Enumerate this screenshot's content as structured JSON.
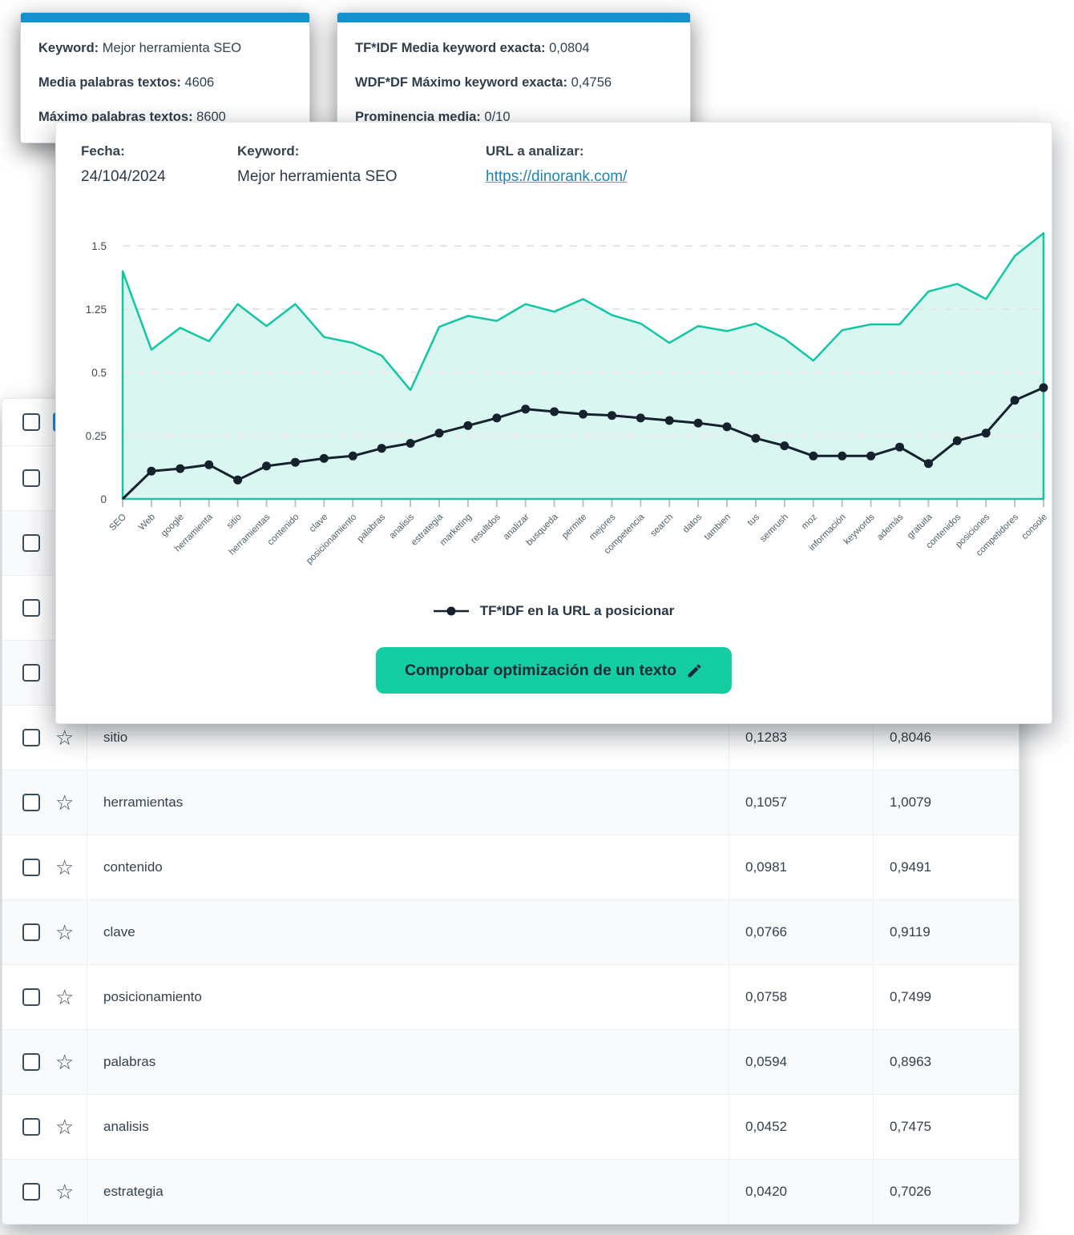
{
  "tooltips": [
    {
      "lines": [
        {
          "label": "Keyword:",
          "value": "Mejor herramienta SEO"
        },
        {
          "label": "Media palabras textos:",
          "value": "4606"
        },
        {
          "label": "Máximo palabras textos:",
          "value": "8600"
        }
      ]
    },
    {
      "lines": [
        {
          "label": "TF*IDF Media keyword exacta:",
          "value": "0,0804"
        },
        {
          "label": "WDF*DF Máximo keyword exacta:",
          "value": "0,4756"
        },
        {
          "label": "Prominencia media:",
          "value": "0/10"
        }
      ]
    }
  ],
  "panel": {
    "fecha_label": "Fecha:",
    "fecha_value": "24/104/2024",
    "keyword_label": "Keyword:",
    "keyword_value": "Mejor herramienta SEO",
    "url_label": "URL a analizar:",
    "url_value": "https://dinorank.com/",
    "legend_label": "TF*IDF en la URL a posicionar",
    "button_label": "Comprobar optimización de un texto",
    "button_icon": "pencil-icon"
  },
  "chart_data": {
    "type": "area+line",
    "title": "",
    "categories": [
      "SEO",
      "Web",
      "google",
      "herramienta",
      "sitio",
      "herramientas",
      "contenido",
      "clave",
      "posicionamiento",
      "palabras",
      "analisis",
      "estrategia",
      "marketing",
      "resultdos",
      "analizar",
      "busqueda",
      "permite",
      "mejores",
      "competencia",
      "search",
      "datos",
      "tambien",
      "tus",
      "semrush",
      "moz",
      "información",
      "keywords",
      "además",
      "gratuita",
      "contenidos",
      "posiciones",
      "competidores",
      "console"
    ],
    "y_tick_labels": [
      "1.5",
      "1.25",
      "0.5",
      "0.25",
      "0"
    ],
    "y_tick_values": [
      1.5,
      1.25,
      0.5,
      0.25,
      0
    ],
    "grid": "horizontal dashed",
    "legend_position": "bottom",
    "series": [
      {
        "name": "",
        "type": "area",
        "color": "#10c6a3",
        "fill": "#d9f6f1",
        "values": [
          1.4,
          0.77,
          1.03,
          0.87,
          1.27,
          1.05,
          1.27,
          0.92,
          0.85,
          0.7,
          0.43,
          1.04,
          1.17,
          1.11,
          1.27,
          1.22,
          1.29,
          1.18,
          1.08,
          0.85,
          1.05,
          0.99,
          1.08,
          0.9,
          0.64,
          1.0,
          1.07,
          1.07,
          1.32,
          1.35,
          1.29,
          1.46,
          1.55
        ]
      },
      {
        "name": "TF*IDF en la URL a posicionar",
        "type": "line",
        "color": "#15222e",
        "values": [
          0,
          0.11,
          0.12,
          0.135,
          0.075,
          0.13,
          0.145,
          0.16,
          0.17,
          0.2,
          0.22,
          0.26,
          0.29,
          0.32,
          0.355,
          0.345,
          0.335,
          0.33,
          0.32,
          0.31,
          0.3,
          0.285,
          0.24,
          0.21,
          0.17,
          0.17,
          0.17,
          0.205,
          0.14,
          0.23,
          0.26,
          0.39,
          0.44
        ]
      }
    ]
  },
  "table": {
    "hidden_row_count": 4,
    "rows": [
      {
        "keyword": "sitio",
        "values": [
          "0,1283",
          "0,8046"
        ]
      },
      {
        "keyword": "herramientas",
        "values": [
          "0,1057",
          "1,0079"
        ]
      },
      {
        "keyword": "contenido",
        "values": [
          "0,0981",
          "0,9491"
        ]
      },
      {
        "keyword": "clave",
        "values": [
          "0,0766",
          "0,9119"
        ]
      },
      {
        "keyword": "posicionamiento",
        "values": [
          "0,0758",
          "0,7499"
        ]
      },
      {
        "keyword": "palabras",
        "values": [
          "0,0594",
          "0,8963"
        ]
      },
      {
        "keyword": "analisis",
        "values": [
          "0,0452",
          "0,7475"
        ]
      },
      {
        "keyword": "estrategia",
        "values": [
          "0,0420",
          "0,7026"
        ]
      }
    ]
  },
  "colors": {
    "accent_teal": "#10c6a3",
    "area_fill": "#d9f6f1",
    "line_dark": "#15222e",
    "tooltip_bar_blue": "#1791cd",
    "button_green": "#14cea2",
    "link_blue": "#2283ad",
    "grid_gray": "#e2e6ea",
    "grid_pink": "#f4e8e8"
  }
}
